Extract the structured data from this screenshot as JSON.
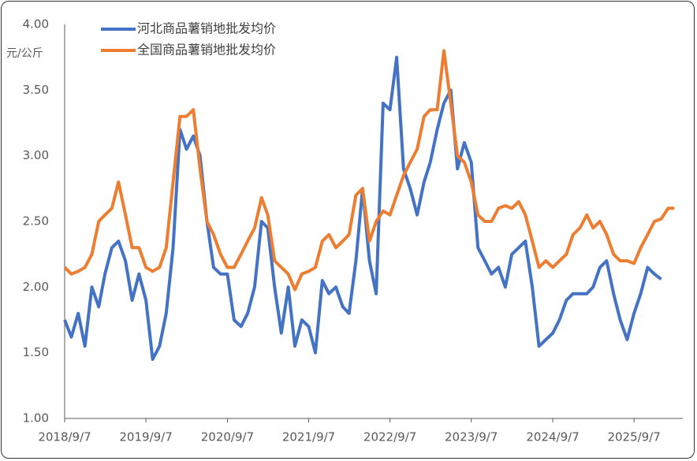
{
  "chart_data": {
    "type": "line",
    "y_unit": "元/公斤",
    "x": [
      "2018/9/7",
      "2018/10/7",
      "2018/11/7",
      "2018/12/7",
      "2019/1/7",
      "2019/2/7",
      "2019/3/7",
      "2019/4/7",
      "2019/5/7",
      "2019/6/7",
      "2019/7/7",
      "2019/8/7",
      "2019/9/7",
      "2019/10/7",
      "2019/11/7",
      "2019/12/7",
      "2020/1/7",
      "2020/2/7",
      "2020/3/7",
      "2020/4/7",
      "2020/5/7",
      "2020/6/7",
      "2020/7/7",
      "2020/8/7",
      "2020/9/7",
      "2020/10/7",
      "2020/11/7",
      "2020/12/7",
      "2021/1/7",
      "2021/2/7",
      "2021/3/7",
      "2021/4/7",
      "2021/5/7",
      "2021/6/7",
      "2021/7/7",
      "2021/8/7",
      "2021/9/7",
      "2021/10/7",
      "2021/11/7",
      "2021/12/7",
      "2022/1/7",
      "2022/2/7",
      "2022/3/7",
      "2022/4/7",
      "2022/5/7",
      "2022/6/7",
      "2022/7/7",
      "2022/8/7",
      "2022/9/7",
      "2022/10/7",
      "2022/11/7",
      "2022/12/7",
      "2023/1/7",
      "2023/2/7",
      "2023/3/7",
      "2023/4/7",
      "2023/5/7",
      "2023/6/7",
      "2023/7/7",
      "2023/8/7",
      "2023/9/7",
      "2023/10/7",
      "2023/11/7",
      "2023/12/7",
      "2024/1/7",
      "2024/2/7",
      "2024/3/7",
      "2024/4/7",
      "2024/5/7",
      "2024/6/7",
      "2024/7/7",
      "2024/8/7",
      "2024/9/7",
      "2024/10/7",
      "2024/11/7",
      "2024/12/7",
      "2025/1/7",
      "2025/2/7",
      "2025/3/7",
      "2025/4/7",
      "2025/5/7",
      "2025/6/7",
      "2025/7/7",
      "2025/8/7",
      "2025/9/7",
      "2025/10/7",
      "2025/11/7",
      "2025/12/7",
      "2026/1/7",
      "2026/2/7",
      "2026/3/7"
    ],
    "series": [
      {
        "name": "河北商品薯销地批发均价",
        "color": "#4472c4",
        "values": [
          1.75,
          1.62,
          1.8,
          1.55,
          2.0,
          1.85,
          2.1,
          2.3,
          2.35,
          2.2,
          1.9,
          2.1,
          1.9,
          1.45,
          1.55,
          1.8,
          2.3,
          3.2,
          3.05,
          3.15,
          3.0,
          2.5,
          2.15,
          2.1,
          2.1,
          1.75,
          1.7,
          1.8,
          2.0,
          2.5,
          2.45,
          2.0,
          1.65,
          2.0,
          1.55,
          1.75,
          1.7,
          1.5,
          2.05,
          1.95,
          2.0,
          1.85,
          1.8,
          2.2,
          2.75,
          2.2,
          1.95,
          3.4,
          3.35,
          3.75,
          2.9,
          2.75,
          2.55,
          2.8,
          2.95,
          3.2,
          3.4,
          3.5,
          2.9,
          3.1,
          2.95,
          2.3,
          2.2,
          2.1,
          2.15,
          2.0,
          2.25,
          2.3,
          2.35,
          2.0,
          1.55,
          1.6,
          1.65,
          1.75,
          1.9,
          1.95,
          1.95,
          1.95,
          2.0,
          2.15,
          2.2,
          1.95,
          1.75,
          1.6,
          1.8,
          1.95,
          2.15,
          2.1,
          2.06,
          null,
          null
        ]
      },
      {
        "name": "全国商品薯销地批发均价",
        "color": "#ed7d31",
        "values": [
          2.15,
          2.1,
          2.12,
          2.15,
          2.25,
          2.5,
          2.55,
          2.6,
          2.8,
          2.55,
          2.3,
          2.3,
          2.15,
          2.12,
          2.15,
          2.3,
          2.8,
          3.3,
          3.3,
          3.35,
          2.9,
          2.5,
          2.4,
          2.25,
          2.15,
          2.15,
          2.25,
          2.35,
          2.45,
          2.68,
          2.55,
          2.2,
          2.15,
          2.1,
          1.98,
          2.1,
          2.12,
          2.15,
          2.35,
          2.4,
          2.3,
          2.35,
          2.4,
          2.7,
          2.75,
          2.35,
          2.5,
          2.58,
          2.55,
          2.7,
          2.85,
          2.95,
          3.05,
          3.3,
          3.35,
          3.35,
          3.8,
          3.4,
          3.0,
          2.95,
          2.8,
          2.55,
          2.5,
          2.5,
          2.6,
          2.62,
          2.6,
          2.65,
          2.55,
          2.35,
          2.15,
          2.2,
          2.15,
          2.2,
          2.25,
          2.4,
          2.45,
          2.55,
          2.45,
          2.5,
          2.4,
          2.25,
          2.2,
          2.2,
          2.18,
          2.3,
          2.4,
          2.5,
          2.52,
          2.6,
          2.6
        ]
      }
    ],
    "xlim": [
      "2018/9/7",
      "2026/4/14"
    ],
    "xticks": [
      "2018/9/7",
      "2019/9/7",
      "2020/9/7",
      "2021/9/7",
      "2022/9/7",
      "2023/9/7",
      "2024/9/7",
      "2025/9/7"
    ],
    "ylim": [
      1,
      4
    ],
    "yticks": [
      {
        "value": 1,
        "label": "1.00"
      },
      {
        "value": 1.5,
        "label": "1.50"
      },
      {
        "value": 2,
        "label": "2.00"
      },
      {
        "value": 2.5,
        "label": "2.50"
      },
      {
        "value": 3,
        "label": "3.00"
      },
      {
        "value": 3.5,
        "label": "3.50"
      },
      {
        "value": 4,
        "label": "4.00"
      }
    ],
    "grid": false,
    "legend": "top-left"
  }
}
